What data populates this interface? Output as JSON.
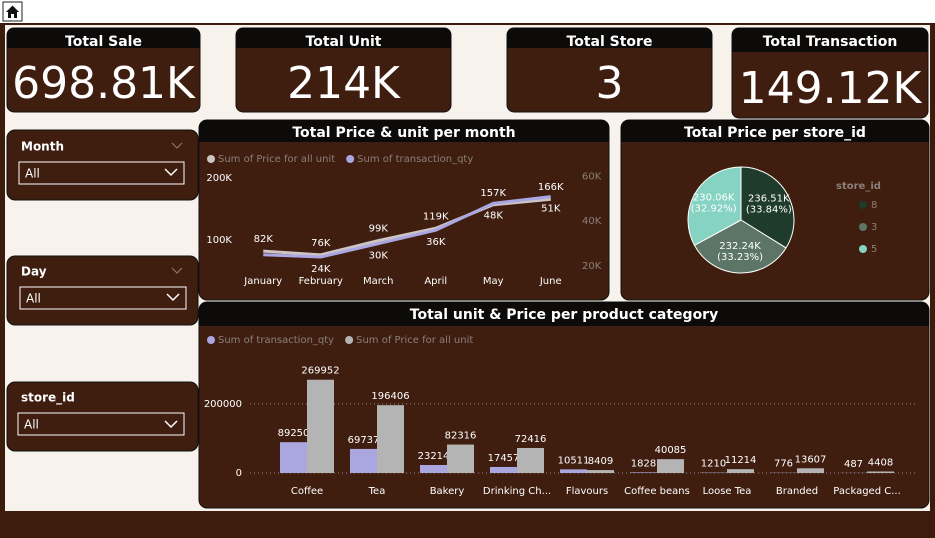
{
  "cards": [
    {
      "title": "Total Sale",
      "value": "698.81K"
    },
    {
      "title": "Total Unit",
      "value": "214K"
    },
    {
      "title": "Total Store",
      "value": "3"
    },
    {
      "title": "Total Transaction",
      "value": "149.12K"
    }
  ],
  "filters": [
    {
      "label": "Month",
      "selected": "All"
    },
    {
      "label": "Day",
      "selected": "All"
    },
    {
      "label": "store_id",
      "selected": "All"
    }
  ],
  "chart_data": [
    {
      "type": "line",
      "title": "Total Price & unit per month",
      "categories": [
        "January",
        "February",
        "March",
        "April",
        "May",
        "June"
      ],
      "series": [
        {
          "name": "Sum of Price for all unit",
          "color": "#cdc4c4",
          "values": [
            82000,
            76000,
            99000,
            119000,
            157000,
            166000
          ],
          "value_labels": [
            "82K",
            "76K",
            "99K",
            "119K",
            "157K",
            "166K"
          ]
        },
        {
          "name": "Sum of transaction_qty",
          "color": "#aaa6e2",
          "axis": "y2",
          "values": [
            25000,
            24000,
            30000,
            36000,
            48000,
            51000
          ],
          "value_labels": [
            null,
            "24K",
            "30K",
            "36K",
            "48K",
            "51K"
          ]
        }
      ],
      "ylim": [
        58000,
        210000
      ],
      "yticks": [
        {
          "value": 100000,
          "label": "100K"
        },
        {
          "value": 200000,
          "label": "200K"
        }
      ],
      "y2lim": [
        20000,
        62000
      ],
      "y2ticks": [
        {
          "value": 20000,
          "label": "20K"
        },
        {
          "value": 40000,
          "label": "40K"
        },
        {
          "value": 60000,
          "label": "60K"
        }
      ]
    },
    {
      "type": "pie",
      "title": "Total Price per store_id",
      "legend_title": "store_id",
      "categories": [
        "8",
        "3",
        "5"
      ],
      "values": [
        236510,
        232240,
        230060
      ],
      "value_labels": [
        "236.51K",
        "232.24K",
        "230.06K"
      ],
      "percent_labels": [
        "(33.84%)",
        "(33.23%)",
        "(32.92%)"
      ],
      "colors": [
        "#1f3b2b",
        "#5c7567",
        "#86d3c3"
      ]
    },
    {
      "type": "bar",
      "title": "Total unit & Price per product category",
      "categories": [
        "Coffee",
        "Tea",
        "Bakery",
        "Drinking Ch...",
        "Flavours",
        "Coffee beans",
        "Loose Tea",
        "Branded",
        "Packaged C..."
      ],
      "series": [
        {
          "name": "Sum of transaction_qty",
          "color": "#a9a6e0",
          "values": [
            89250,
            69737,
            23214,
            17457,
            10511,
            1828,
            1210,
            776,
            487
          ]
        },
        {
          "name": "Sum of Price for all unit",
          "color": "#b4b4b4",
          "values": [
            269952,
            196406,
            82316,
            72416,
            8409,
            40085,
            11214,
            13607,
            4408
          ]
        }
      ],
      "ylim": [
        0,
        330000
      ],
      "yticks": [
        0,
        200000
      ],
      "grid": true
    }
  ]
}
